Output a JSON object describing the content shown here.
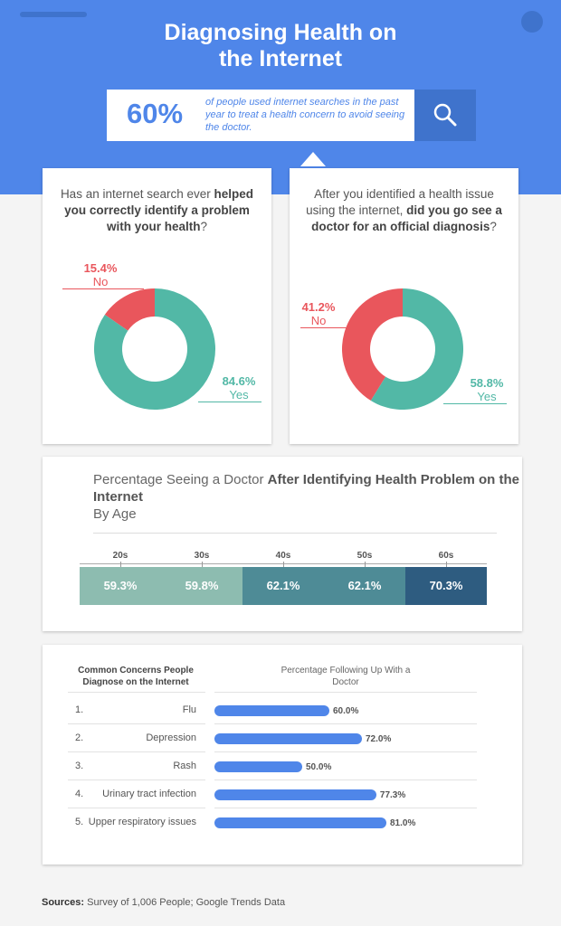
{
  "header": {
    "title_line1": "Diagnosing Health on",
    "title_line2": "the Internet",
    "stat_pct": "60%",
    "stat_text": "of people used internet searches in the past year to treat a health concern to avoid seeing the doctor.",
    "search_icon": "search-icon",
    "accent": "#4f86e9"
  },
  "card1": {
    "q_pre": "Has an internet search ever",
    "q_bold": "helped you correctly identify a problem with your health",
    "q_post": "?"
  },
  "card2": {
    "q_pre": "After you identified a health issue using the internet,",
    "q_bold": "did you go see a doctor for an official diagnosis",
    "q_post": "?"
  },
  "age_card": {
    "title_pre": "Percentage Seeing a Doctor",
    "title_bold": "After Identifying Health Problem on the Internet",
    "title_sub": "By Age"
  },
  "list_card": {
    "head_left": "Common Concerns People Diagnose on the Internet",
    "head_right": "Percentage Following Up With a Doctor"
  },
  "sources": {
    "label": "Sources:",
    "text": "Survey of 1,006 People; Google Trends Data"
  },
  "chart_data": [
    {
      "type": "pie",
      "categories": [
        "No",
        "Yes"
      ],
      "values": [
        15.4,
        84.6
      ],
      "value_labels": [
        "15.4%",
        "84.6%"
      ],
      "colors": [
        "#e9565c",
        "#52b8a6"
      ]
    },
    {
      "type": "pie",
      "categories": [
        "No",
        "Yes"
      ],
      "values": [
        41.2,
        58.8
      ],
      "value_labels": [
        "41.2%",
        "58.8%"
      ],
      "colors": [
        "#e9565c",
        "#52b8a6"
      ]
    },
    {
      "type": "table",
      "categories": [
        "20s",
        "30s",
        "40s",
        "50s",
        "60s"
      ],
      "values": [
        59.3,
        59.8,
        62.1,
        62.1,
        70.3
      ],
      "value_labels": [
        "59.3%",
        "59.8%",
        "62.1%",
        "62.1%",
        "70.3%"
      ],
      "colors": [
        "#8dbcb0",
        "#8dbcb0",
        "#4e8b96",
        "#4e8b96",
        "#2e5c80"
      ]
    },
    {
      "type": "bar",
      "numbers": [
        "1.",
        "2.",
        "3.",
        "4.",
        "5."
      ],
      "categories": [
        "Flu",
        "Depression",
        "Rash",
        "Urinary tract infection",
        "Upper respiratory issues"
      ],
      "values": [
        60.0,
        72.0,
        50.0,
        77.3,
        81.0
      ],
      "value_labels": [
        "60.0%",
        "72.0%",
        "50.0%",
        "77.3%",
        "81.0%"
      ],
      "xlim": [
        0,
        100
      ],
      "color": "#4f86e9"
    }
  ]
}
